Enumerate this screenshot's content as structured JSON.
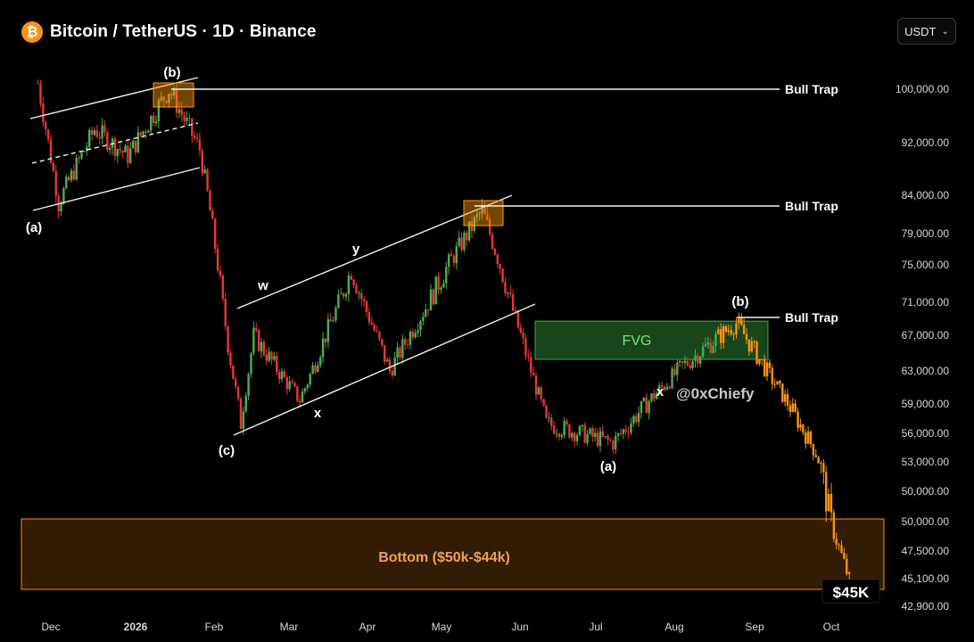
{
  "header": {
    "icon": "bitcoin-icon",
    "icon_glyph": "₿",
    "title": "Bitcoin / TetherUS · 1D · Binance"
  },
  "currency_selector": {
    "value": "USDT",
    "chevron": "⌄"
  },
  "watermark": "@0xChiefy",
  "colors": {
    "up": "#4caf50",
    "down": "#e53935",
    "projection": "#f7931a",
    "fvg": "#2e7d32",
    "bottom_zone": "#ff8c1a",
    "trap_box": "#ff9800"
  },
  "chart_data": {
    "type": "candlestick",
    "y_ticks": [
      "100,000.00",
      "92,000.00",
      "84,000.00",
      "79,000.00",
      "75,000.00",
      "71,000.00",
      "67,000.00",
      "63,000.00",
      "59,000.00",
      "56,000.00",
      "53,000.00",
      "50,000.00",
      "50,000.00",
      "47,500.00",
      "45,100.00",
      "42,900.00"
    ],
    "x_ticks": [
      "Dec",
      "2026",
      "Feb",
      "Mar",
      "Apr",
      "May",
      "Jun",
      "Jul",
      "Aug",
      "Sep",
      "Oct"
    ],
    "price_path": [
      {
        "date": "2025-11-26",
        "price": 101000
      },
      {
        "date": "2025-12-04",
        "price": 83000
      },
      {
        "date": "2025-12-18",
        "price": 94000
      },
      {
        "date": "2025-12-31",
        "price": 90000
      },
      {
        "date": "2026-01-16",
        "price": 100000
      },
      {
        "date": "2026-01-28",
        "price": 91000
      },
      {
        "date": "2026-02-08",
        "price": 66000
      },
      {
        "date": "2026-02-13",
        "price": 57000
      },
      {
        "date": "2026-02-18",
        "price": 67000
      },
      {
        "date": "2026-03-08",
        "price": 59500
      },
      {
        "date": "2026-03-28",
        "price": 74500
      },
      {
        "date": "2026-04-12",
        "price": 63000
      },
      {
        "date": "2026-05-18",
        "price": 82000
      },
      {
        "date": "2026-06-12",
        "price": 57000
      },
      {
        "date": "2026-07-08",
        "price": 55000
      },
      {
        "date": "2026-08-04",
        "price": 63500
      },
      {
        "date": "2026-08-25",
        "price": 68500
      },
      {
        "date": "2026-09-25",
        "price": 54000
      },
      {
        "date": "2026-10-08",
        "price": 45000
      }
    ],
    "projection_start": "2026-08-18",
    "annotations": {
      "waves": [
        {
          "text": "(a)",
          "date": "2025-12-04",
          "price": 83000
        },
        {
          "text": "(b)",
          "date": "2026-01-16",
          "price": 100000
        },
        {
          "text": "(c)",
          "date": "2026-02-13",
          "price": 57000
        },
        {
          "text": "w",
          "date": "2026-02-18",
          "price": 67000
        },
        {
          "text": "x",
          "date": "2026-03-08",
          "price": 59500
        },
        {
          "text": "y",
          "date": "2026-03-28",
          "price": 74500
        },
        {
          "text": "(a)",
          "date": "2026-07-08",
          "price": 55000
        },
        {
          "text": "(b)",
          "date": "2026-08-25",
          "price": 68500
        },
        {
          "text": "x",
          "date": "2026-08-15",
          "price": 60000
        }
      ],
      "bull_traps": [
        {
          "label": "Bull Trap",
          "price": 100000
        },
        {
          "label": "Bull Trap",
          "price": 82000
        },
        {
          "label": "Bull Trap",
          "price": 68500
        }
      ],
      "fvg": {
        "label": "FVG",
        "price_top": 68500,
        "price_bottom": 64500
      },
      "bottom_zone": {
        "label": "Bottom ($50k-$44k)",
        "price_top": 50000,
        "price_bottom": 44000
      },
      "price_marker": "$45K"
    }
  }
}
